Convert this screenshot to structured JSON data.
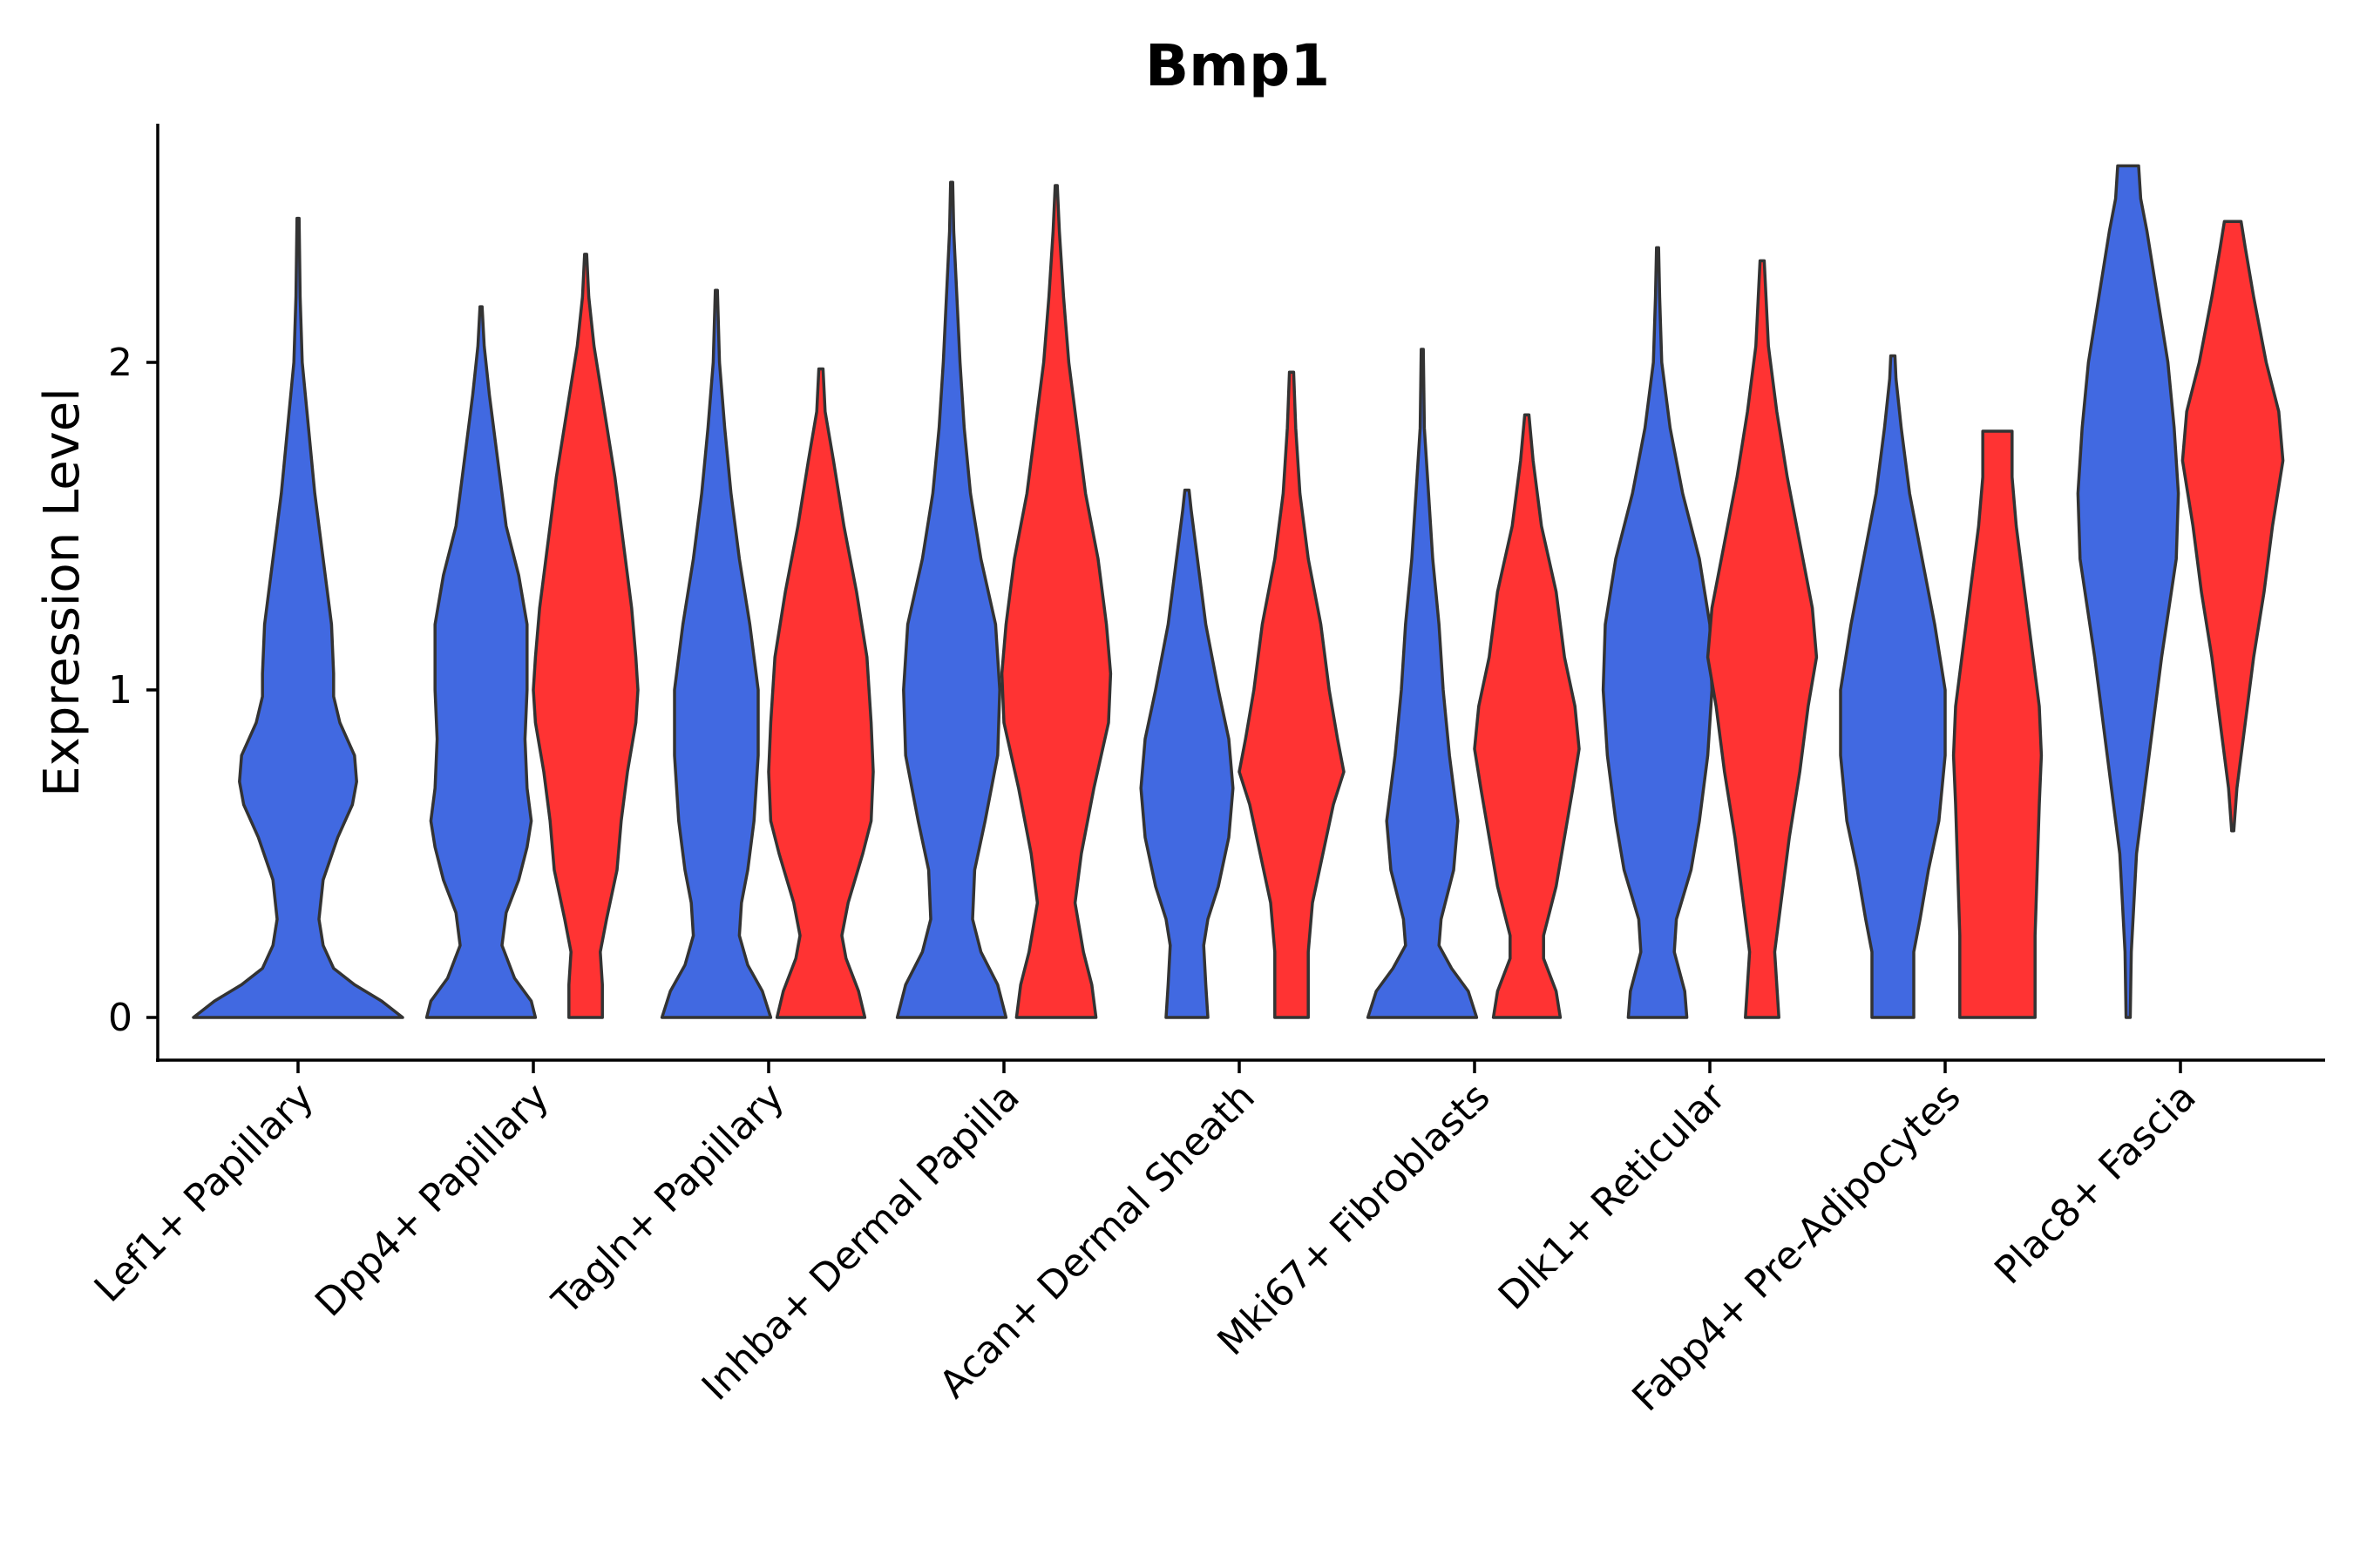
{
  "chart_data": {
    "type": "violin",
    "title": "Bmp1",
    "xlabel": "",
    "ylabel": "Expression Level",
    "ylim": [
      -0.13,
      2.74
    ],
    "yticks": [
      0,
      1,
      2
    ],
    "grid": false,
    "legend": "none",
    "categories": [
      "Lef1+ Papillary",
      "Dpp4+ Papillary",
      "Tagln+ Papillary",
      "Inhba+ Dermal Papilla",
      "Acan+ Dermal Sheath",
      "Mki67+ Fibroblasts",
      "Dlk1+ Reticular",
      "Fabp4+ Pre-Adipocytes",
      "Plac8+ Fascia"
    ],
    "groups": [
      {
        "name": "group-1",
        "color": "#4169E1"
      },
      {
        "name": "group-2",
        "color": "#FF3333"
      }
    ],
    "violins": [
      {
        "category": "Lef1+ Papillary",
        "group": "group-1",
        "max": 2.44,
        "profile": [
          [
            0,
            0.5
          ],
          [
            0.05,
            0.4
          ],
          [
            0.1,
            0.27
          ],
          [
            0.15,
            0.17
          ],
          [
            0.22,
            0.12
          ],
          [
            0.3,
            0.1
          ],
          [
            0.42,
            0.12
          ],
          [
            0.55,
            0.19
          ],
          [
            0.65,
            0.26
          ],
          [
            0.72,
            0.28
          ],
          [
            0.8,
            0.27
          ],
          [
            0.9,
            0.2
          ],
          [
            0.98,
            0.17
          ],
          [
            1.05,
            0.17
          ],
          [
            1.2,
            0.16
          ],
          [
            1.4,
            0.12
          ],
          [
            1.6,
            0.08
          ],
          [
            1.8,
            0.05
          ],
          [
            2.0,
            0.02
          ],
          [
            2.2,
            0.01
          ],
          [
            2.44,
            0.005
          ]
        ]
      },
      {
        "category": "Dpp4+ Papillary",
        "group": "group-1",
        "max": 2.17,
        "profile": [
          [
            0,
            0.26
          ],
          [
            0.05,
            0.24
          ],
          [
            0.12,
            0.16
          ],
          [
            0.22,
            0.1
          ],
          [
            0.32,
            0.12
          ],
          [
            0.42,
            0.18
          ],
          [
            0.52,
            0.22
          ],
          [
            0.6,
            0.24
          ],
          [
            0.7,
            0.22
          ],
          [
            0.85,
            0.21
          ],
          [
            1.0,
            0.22
          ],
          [
            1.2,
            0.22
          ],
          [
            1.35,
            0.18
          ],
          [
            1.5,
            0.12
          ],
          [
            1.7,
            0.08
          ],
          [
            1.9,
            0.04
          ],
          [
            2.05,
            0.015
          ],
          [
            2.17,
            0.005
          ]
        ]
      },
      {
        "category": "Dpp4+ Papillary",
        "group": "group-2",
        "max": 2.33,
        "profile": [
          [
            0,
            0.08
          ],
          [
            0.1,
            0.08
          ],
          [
            0.2,
            0.07
          ],
          [
            0.3,
            0.1
          ],
          [
            0.45,
            0.15
          ],
          [
            0.6,
            0.17
          ],
          [
            0.75,
            0.2
          ],
          [
            0.9,
            0.24
          ],
          [
            1.0,
            0.25
          ],
          [
            1.1,
            0.24
          ],
          [
            1.25,
            0.22
          ],
          [
            1.45,
            0.18
          ],
          [
            1.65,
            0.14
          ],
          [
            1.85,
            0.09
          ],
          [
            2.05,
            0.04
          ],
          [
            2.2,
            0.015
          ],
          [
            2.33,
            0.005
          ]
        ]
      },
      {
        "category": "Tagln+ Papillary",
        "group": "group-1",
        "max": 2.22,
        "profile": [
          [
            0,
            0.26
          ],
          [
            0.08,
            0.22
          ],
          [
            0.16,
            0.15
          ],
          [
            0.25,
            0.11
          ],
          [
            0.35,
            0.12
          ],
          [
            0.45,
            0.15
          ],
          [
            0.6,
            0.18
          ],
          [
            0.8,
            0.2
          ],
          [
            1.0,
            0.2
          ],
          [
            1.2,
            0.16
          ],
          [
            1.4,
            0.11
          ],
          [
            1.6,
            0.07
          ],
          [
            1.8,
            0.04
          ],
          [
            2.0,
            0.015
          ],
          [
            2.22,
            0.005
          ]
        ]
      },
      {
        "category": "Tagln+ Papillary",
        "group": "group-2",
        "max": 1.98,
        "profile": [
          [
            0,
            0.21
          ],
          [
            0.08,
            0.18
          ],
          [
            0.18,
            0.12
          ],
          [
            0.25,
            0.1
          ],
          [
            0.35,
            0.13
          ],
          [
            0.5,
            0.2
          ],
          [
            0.6,
            0.24
          ],
          [
            0.75,
            0.25
          ],
          [
            0.9,
            0.24
          ],
          [
            1.1,
            0.22
          ],
          [
            1.3,
            0.17
          ],
          [
            1.5,
            0.11
          ],
          [
            1.7,
            0.06
          ],
          [
            1.85,
            0.02
          ],
          [
            1.98,
            0.01
          ]
        ]
      },
      {
        "category": "Inhba+ Dermal Papilla",
        "group": "group-1",
        "max": 2.55,
        "profile": [
          [
            0,
            0.26
          ],
          [
            0.1,
            0.22
          ],
          [
            0.2,
            0.14
          ],
          [
            0.3,
            0.1
          ],
          [
            0.45,
            0.11
          ],
          [
            0.6,
            0.16
          ],
          [
            0.8,
            0.22
          ],
          [
            1.0,
            0.23
          ],
          [
            1.2,
            0.21
          ],
          [
            1.4,
            0.14
          ],
          [
            1.6,
            0.09
          ],
          [
            1.8,
            0.06
          ],
          [
            2.0,
            0.04
          ],
          [
            2.2,
            0.025
          ],
          [
            2.4,
            0.01
          ],
          [
            2.55,
            0.005
          ]
        ]
      },
      {
        "category": "Inhba+ Dermal Papilla",
        "group": "group-2",
        "max": 2.54,
        "profile": [
          [
            0,
            0.19
          ],
          [
            0.1,
            0.17
          ],
          [
            0.2,
            0.13
          ],
          [
            0.35,
            0.09
          ],
          [
            0.5,
            0.12
          ],
          [
            0.7,
            0.18
          ],
          [
            0.9,
            0.25
          ],
          [
            1.05,
            0.26
          ],
          [
            1.2,
            0.24
          ],
          [
            1.4,
            0.2
          ],
          [
            1.6,
            0.14
          ],
          [
            1.8,
            0.1
          ],
          [
            2.0,
            0.06
          ],
          [
            2.2,
            0.035
          ],
          [
            2.4,
            0.015
          ],
          [
            2.54,
            0.005
          ]
        ]
      },
      {
        "category": "Acan+ Dermal Sheath",
        "group": "group-1",
        "max": 1.61,
        "profile": [
          [
            0,
            0.1
          ],
          [
            0.1,
            0.09
          ],
          [
            0.22,
            0.08
          ],
          [
            0.3,
            0.1
          ],
          [
            0.4,
            0.15
          ],
          [
            0.55,
            0.2
          ],
          [
            0.7,
            0.22
          ],
          [
            0.85,
            0.2
          ],
          [
            1.0,
            0.15
          ],
          [
            1.2,
            0.09
          ],
          [
            1.4,
            0.05
          ],
          [
            1.55,
            0.02
          ],
          [
            1.61,
            0.01
          ]
        ]
      },
      {
        "category": "Acan+ Dermal Sheath",
        "group": "group-2",
        "max": 1.97,
        "profile": [
          [
            0,
            0.08
          ],
          [
            0.1,
            0.08
          ],
          [
            0.2,
            0.08
          ],
          [
            0.35,
            0.1
          ],
          [
            0.5,
            0.15
          ],
          [
            0.65,
            0.2
          ],
          [
            0.75,
            0.25
          ],
          [
            0.85,
            0.22
          ],
          [
            1.0,
            0.18
          ],
          [
            1.2,
            0.14
          ],
          [
            1.4,
            0.08
          ],
          [
            1.6,
            0.04
          ],
          [
            1.8,
            0.02
          ],
          [
            1.97,
            0.01
          ]
        ]
      },
      {
        "category": "Mki67+ Fibroblasts",
        "group": "group-1",
        "max": 2.04,
        "profile": [
          [
            0,
            0.26
          ],
          [
            0.08,
            0.22
          ],
          [
            0.15,
            0.14
          ],
          [
            0.22,
            0.08
          ],
          [
            0.3,
            0.09
          ],
          [
            0.45,
            0.15
          ],
          [
            0.6,
            0.17
          ],
          [
            0.8,
            0.13
          ],
          [
            1.0,
            0.1
          ],
          [
            1.2,
            0.08
          ],
          [
            1.4,
            0.05
          ],
          [
            1.6,
            0.03
          ],
          [
            1.8,
            0.01
          ],
          [
            2.04,
            0.005
          ]
        ]
      },
      {
        "category": "Mki67+ Fibroblasts",
        "group": "group-2",
        "max": 1.84,
        "profile": [
          [
            0,
            0.16
          ],
          [
            0.08,
            0.14
          ],
          [
            0.18,
            0.08
          ],
          [
            0.25,
            0.08
          ],
          [
            0.4,
            0.14
          ],
          [
            0.55,
            0.18
          ],
          [
            0.7,
            0.22
          ],
          [
            0.82,
            0.25
          ],
          [
            0.95,
            0.23
          ],
          [
            1.1,
            0.18
          ],
          [
            1.3,
            0.14
          ],
          [
            1.5,
            0.07
          ],
          [
            1.7,
            0.03
          ],
          [
            1.84,
            0.01
          ]
        ]
      },
      {
        "category": "Dlk1+ Reticular",
        "group": "group-1",
        "max": 2.35,
        "profile": [
          [
            0,
            0.14
          ],
          [
            0.08,
            0.13
          ],
          [
            0.2,
            0.08
          ],
          [
            0.3,
            0.09
          ],
          [
            0.45,
            0.16
          ],
          [
            0.6,
            0.2
          ],
          [
            0.8,
            0.24
          ],
          [
            1.0,
            0.26
          ],
          [
            1.2,
            0.25
          ],
          [
            1.4,
            0.2
          ],
          [
            1.6,
            0.12
          ],
          [
            1.8,
            0.06
          ],
          [
            2.0,
            0.02
          ],
          [
            2.2,
            0.01
          ],
          [
            2.35,
            0.005
          ]
        ]
      },
      {
        "category": "Dlk1+ Reticular",
        "group": "group-2",
        "max": 2.31,
        "profile": [
          [
            0,
            0.08
          ],
          [
            0.1,
            0.07
          ],
          [
            0.2,
            0.06
          ],
          [
            0.35,
            0.09
          ],
          [
            0.55,
            0.13
          ],
          [
            0.75,
            0.18
          ],
          [
            0.95,
            0.22
          ],
          [
            1.1,
            0.26
          ],
          [
            1.25,
            0.24
          ],
          [
            1.45,
            0.18
          ],
          [
            1.65,
            0.12
          ],
          [
            1.85,
            0.07
          ],
          [
            2.05,
            0.03
          ],
          [
            2.31,
            0.01
          ]
        ]
      },
      {
        "category": "Fabp4+ Pre-Adipocytes",
        "group": "group-1",
        "max": 2.02,
        "profile": [
          [
            0,
            0.1
          ],
          [
            0.1,
            0.1
          ],
          [
            0.2,
            0.1
          ],
          [
            0.3,
            0.13
          ],
          [
            0.45,
            0.17
          ],
          [
            0.6,
            0.22
          ],
          [
            0.8,
            0.25
          ],
          [
            1.0,
            0.25
          ],
          [
            1.2,
            0.2
          ],
          [
            1.4,
            0.14
          ],
          [
            1.6,
            0.08
          ],
          [
            1.8,
            0.04
          ],
          [
            1.95,
            0.015
          ],
          [
            2.02,
            0.01
          ]
        ]
      },
      {
        "category": "Fabp4+ Pre-Adipocytes",
        "group": "group-2",
        "max": 1.79,
        "profile": [
          [
            0,
            0.18
          ],
          [
            0.1,
            0.18
          ],
          [
            0.25,
            0.18
          ],
          [
            0.45,
            0.19
          ],
          [
            0.65,
            0.2
          ],
          [
            0.8,
            0.21
          ],
          [
            0.95,
            0.2
          ],
          [
            1.1,
            0.17
          ],
          [
            1.3,
            0.13
          ],
          [
            1.5,
            0.09
          ],
          [
            1.65,
            0.07
          ],
          [
            1.75,
            0.07
          ],
          [
            1.79,
            0.07
          ]
        ]
      },
      {
        "category": "Plac8+ Fascia",
        "group": "group-1",
        "max": 2.6,
        "profile": [
          [
            0,
            0.01
          ],
          [
            0.2,
            0.015
          ],
          [
            0.5,
            0.04
          ],
          [
            0.8,
            0.1
          ],
          [
            1.1,
            0.16
          ],
          [
            1.4,
            0.23
          ],
          [
            1.6,
            0.24
          ],
          [
            1.8,
            0.22
          ],
          [
            2.0,
            0.19
          ],
          [
            2.2,
            0.14
          ],
          [
            2.4,
            0.09
          ],
          [
            2.5,
            0.06
          ],
          [
            2.6,
            0.05
          ]
        ]
      },
      {
        "category": "Plac8+ Fascia",
        "group": "group-2",
        "max": 2.43,
        "profile": [
          [
            0.57,
            0.005
          ],
          [
            0.7,
            0.02
          ],
          [
            0.9,
            0.06
          ],
          [
            1.1,
            0.1
          ],
          [
            1.3,
            0.15
          ],
          [
            1.5,
            0.19
          ],
          [
            1.7,
            0.24
          ],
          [
            1.85,
            0.22
          ],
          [
            2.0,
            0.16
          ],
          [
            2.2,
            0.1
          ],
          [
            2.35,
            0.06
          ],
          [
            2.43,
            0.04
          ]
        ]
      }
    ]
  }
}
